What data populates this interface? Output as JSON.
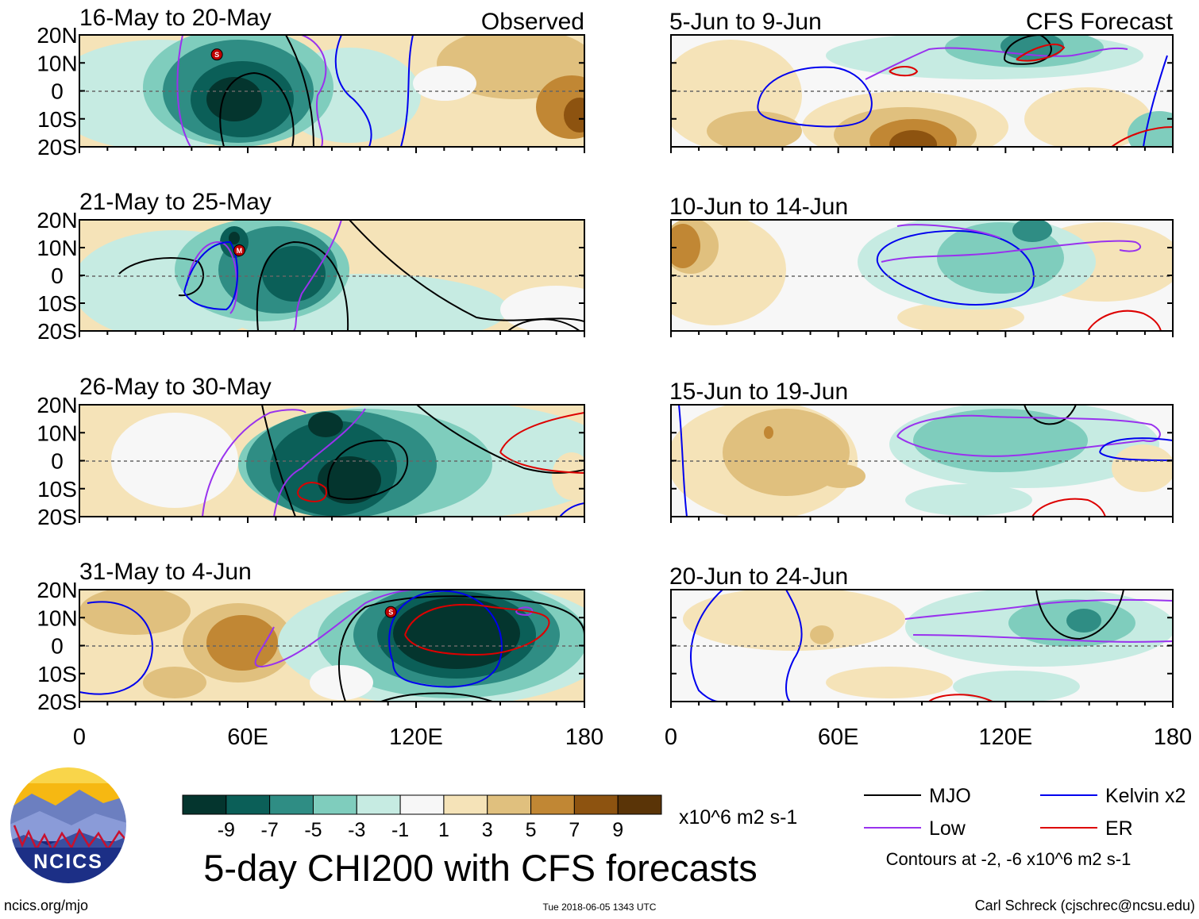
{
  "panels": {
    "observed": [
      {
        "period": "16-May to 20-May",
        "tag": "Observed"
      },
      {
        "period": "21-May to 25-May"
      },
      {
        "period": "26-May to 30-May"
      },
      {
        "period": "31-May to 4-Jun"
      }
    ],
    "forecast": [
      {
        "period": "5-Jun to 9-Jun",
        "tag": "CFS Forecast"
      },
      {
        "period": "10-Jun to 14-Jun"
      },
      {
        "period": "15-Jun to 19-Jun"
      },
      {
        "period": "20-Jun to 24-Jun"
      }
    ]
  },
  "axes": {
    "lat_labels": [
      "20N",
      "10N",
      "0",
      "10S",
      "20S"
    ],
    "lon_labels": [
      "0",
      "60E",
      "120E",
      "180"
    ],
    "lat_values": [
      20,
      10,
      0,
      -10,
      -20
    ],
    "lon_values": [
      0,
      60,
      120,
      180
    ]
  },
  "colorbar": {
    "tick_labels": [
      "-9",
      "-7",
      "-5",
      "-3",
      "-1",
      "1",
      "3",
      "5",
      "7",
      "9"
    ],
    "colors": [
      "#04352e",
      "#0b5f58",
      "#2f8d84",
      "#7fcdbd",
      "#c6ebe2",
      "#f7f7f7",
      "#f5e3b8",
      "#e0c07e",
      "#c18734",
      "#8d5310",
      "#5a3407"
    ],
    "units": "x10^6 m2 s-1"
  },
  "legend": {
    "items": [
      {
        "label": "MJO",
        "color": "#000000"
      },
      {
        "label": "Kelvin x2",
        "color": "#0000ee"
      },
      {
        "label": "Low",
        "color": "#9932ee"
      },
      {
        "label": "ER",
        "color": "#dd0000"
      }
    ],
    "note": "Contours at -2, -6 x10^6 m2 s-1"
  },
  "title": "5-day CHI200 with CFS forecasts",
  "logo": {
    "text": "NCICS"
  },
  "footer": {
    "url": "ncics.org/mjo",
    "timestamp": "Tue 2018-06-05 1343 UTC",
    "credit": "Carl Schreck (cjschrec@ncsu.edu)"
  },
  "markers": [
    {
      "panel": "observed-1",
      "letter": "S",
      "lon": 49,
      "lat": 13
    },
    {
      "panel": "observed-2",
      "letter": "M",
      "lon": 57,
      "lat": 9
    },
    {
      "panel": "observed-4",
      "letter": "S",
      "lon": 111,
      "lat": 12
    }
  ]
}
